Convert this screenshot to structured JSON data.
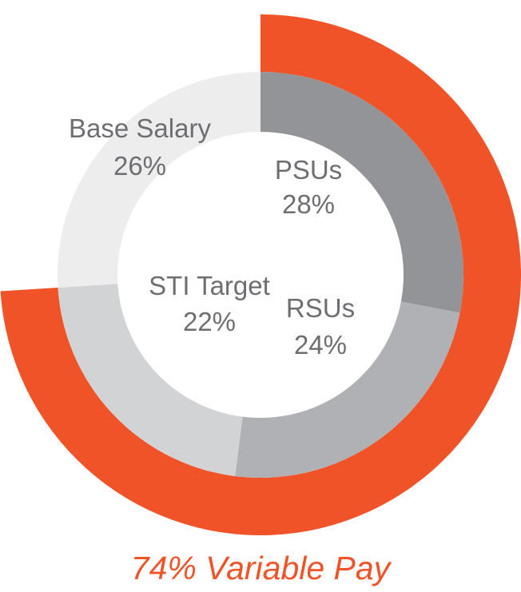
{
  "chart_data": {
    "type": "pie",
    "title": "",
    "segments": [
      {
        "name": "PSUs",
        "value": 28,
        "label": "28%",
        "color": "#939497"
      },
      {
        "name": "RSUs",
        "value": 24,
        "label": "24%",
        "color": "#b0b1b4"
      },
      {
        "name": "STI Target",
        "value": 22,
        "label": "22%",
        "color": "#d2d3d5"
      },
      {
        "name": "Base Salary",
        "value": 26,
        "label": "26%",
        "color": "#ededee"
      }
    ],
    "outer_ring": {
      "name": "Variable Pay",
      "value": 74,
      "color": "#f05327"
    },
    "caption": "74% Variable Pay",
    "caption_color": "#f05327"
  }
}
